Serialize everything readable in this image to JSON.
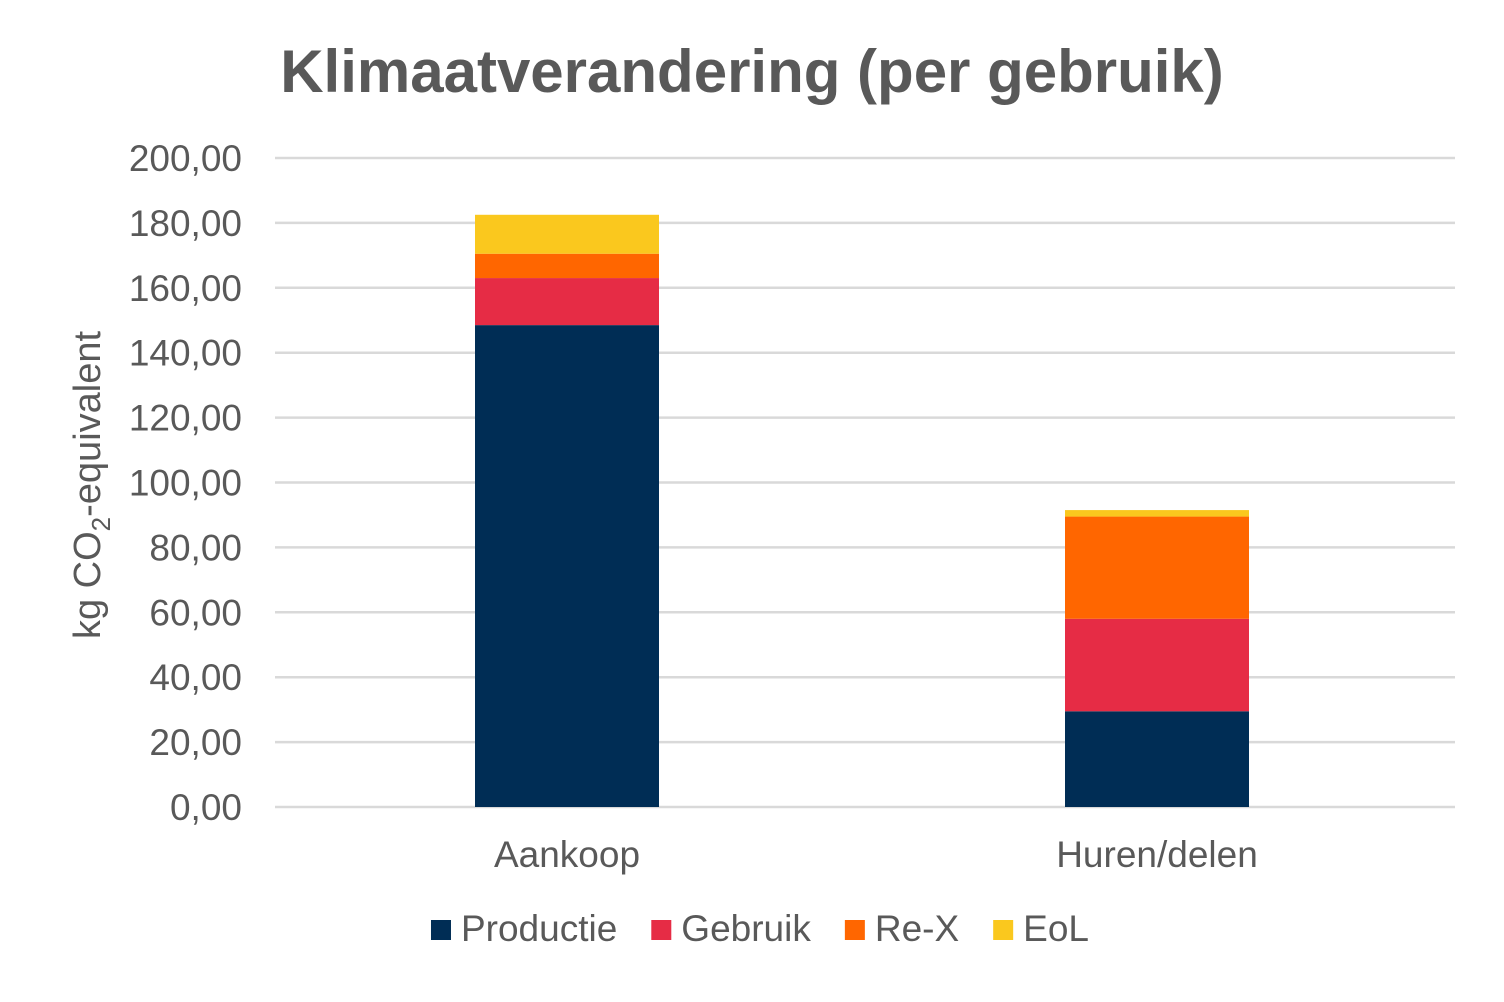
{
  "chart_data": {
    "type": "bar",
    "stacked": true,
    "title": "Klimaatverandering (per gebruik)",
    "xlabel": "",
    "ylabel": {
      "prefix": "kg CO",
      "subscript": "2",
      "suffix": "-equivalent"
    },
    "ylim": [
      0,
      200
    ],
    "ytick_step": 20,
    "ytick_labels": [
      "0,00",
      "20,00",
      "40,00",
      "60,00",
      "80,00",
      "100,00",
      "120,00",
      "140,00",
      "160,00",
      "180,00",
      "200,00"
    ],
    "grid": true,
    "legend_position": "bottom",
    "categories": [
      "Aankoop",
      "Huren/delen"
    ],
    "series": [
      {
        "name": "Productie",
        "color": "#002d55",
        "values": [
          148.5,
          29.5
        ]
      },
      {
        "name": "Gebruik",
        "color": "#e62c45",
        "values": [
          14.5,
          28.5
        ]
      },
      {
        "name": "Re-X",
        "color": "#ff6600",
        "values": [
          7.5,
          31.5
        ]
      },
      {
        "name": "EoL",
        "color": "#fac81e",
        "values": [
          12.0,
          2.0
        ]
      }
    ]
  }
}
